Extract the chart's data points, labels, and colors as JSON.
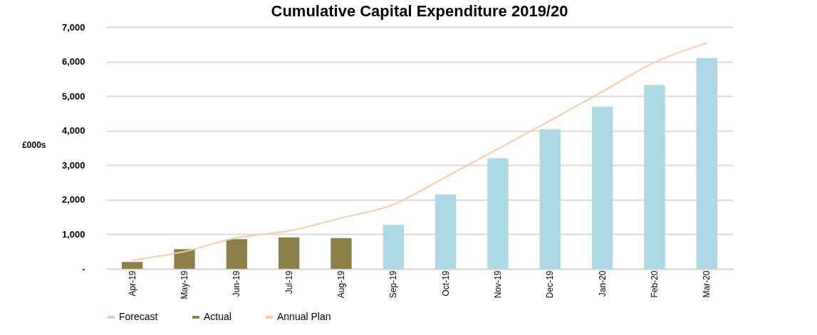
{
  "chart_data": {
    "type": "bar",
    "title": "Cumulative Capital Expenditure 2019/20",
    "ylabel": "£000s",
    "categories": [
      "Apr-19",
      "May-19",
      "Jun-19",
      "Jul-19",
      "Aug-19",
      "Sep-19",
      "Oct-19",
      "Nov-19",
      "Dec-19",
      "Jan-20",
      "Feb-20",
      "Mar-20"
    ],
    "series": [
      {
        "name": "Forecast",
        "color": "#add8e6",
        "values": [
          null,
          null,
          null,
          null,
          null,
          1270,
          2150,
          3200,
          4040,
          4690,
          5320,
          6100
        ]
      },
      {
        "name": "Actual",
        "color": "#8b8048",
        "values": [
          200,
          570,
          860,
          910,
          890,
          null,
          null,
          null,
          null,
          null,
          null,
          null
        ]
      },
      {
        "name": "Annual Plan",
        "type": "line",
        "color": "#fbc9a4",
        "values": [
          250,
          500,
          900,
          1100,
          1470,
          1860,
          2660,
          3470,
          4290,
          5130,
          5980,
          6540
        ]
      }
    ],
    "ylim": [
      0,
      7000
    ],
    "yticks": [
      {
        "value": 0,
        "label": "-"
      },
      {
        "value": 1000,
        "label": "1,000"
      },
      {
        "value": 2000,
        "label": "2,000"
      },
      {
        "value": 3000,
        "label": "3,000"
      },
      {
        "value": 4000,
        "label": "4,000"
      },
      {
        "value": 5000,
        "label": "5,000"
      },
      {
        "value": 6000,
        "label": "6,000"
      },
      {
        "value": 7000,
        "label": "7,000"
      }
    ],
    "grid": "y",
    "legend": "bottom"
  }
}
